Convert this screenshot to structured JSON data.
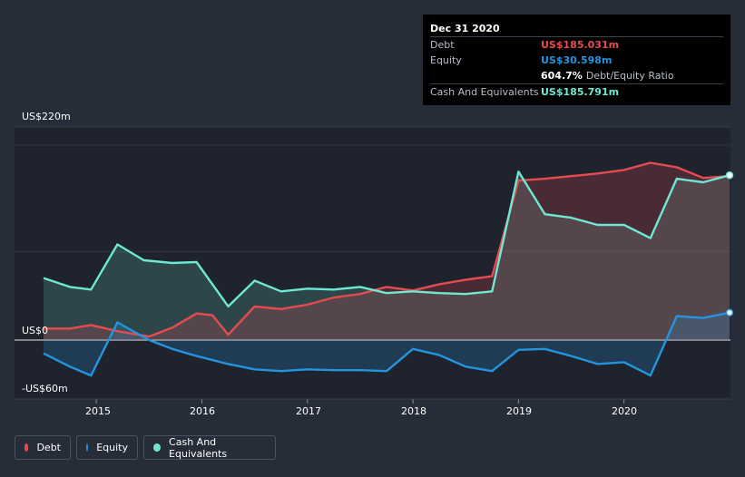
{
  "tooltip": {
    "date": "Dec 31 2020",
    "debt_label": "Debt",
    "debt_value": "US$185.031m",
    "equity_label": "Equity",
    "equity_value": "US$30.598m",
    "ratio_value": "604.7%",
    "ratio_label": "Debt/Equity Ratio",
    "cash_label": "Cash And Equivalents",
    "cash_value": "US$185.791m"
  },
  "legend": {
    "debt": "Debt",
    "equity": "Equity",
    "cash": "Cash And Equivalents"
  },
  "colors": {
    "debt": "#e64b50",
    "equity": "#2394df",
    "cash": "#6ee7d3"
  },
  "chart_data": {
    "type": "area",
    "ylabels": [
      "US$220m",
      "US$0",
      "-US$60m"
    ],
    "xlabels": [
      "2015",
      "2016",
      "2017",
      "2018",
      "2019",
      "2020"
    ],
    "xlim": [
      2014.5,
      2021.0
    ],
    "ylim": [
      -60,
      220
    ],
    "series": [
      {
        "name": "Debt",
        "x": [
          2014.5,
          2014.75,
          2014.95,
          2015.2,
          2015.5,
          2015.72,
          2015.95,
          2016.1,
          2016.25,
          2016.5,
          2016.75,
          2017.0,
          2017.25,
          2017.5,
          2017.75,
          2018.0,
          2018.25,
          2018.5,
          2018.75,
          2019.0,
          2019.25,
          2019.5,
          2019.75,
          2020.0,
          2020.25,
          2020.5,
          2020.75,
          2021.0
        ],
        "values": [
          13,
          13,
          17,
          10,
          4,
          14,
          30,
          28,
          6,
          38,
          35,
          40,
          48,
          52,
          60,
          56,
          63,
          68,
          72,
          180,
          182,
          185,
          188,
          192,
          200,
          195,
          183,
          185
        ]
      },
      {
        "name": "Equity",
        "x": [
          2014.5,
          2014.75,
          2014.95,
          2015.2,
          2015.5,
          2015.72,
          2015.95,
          2016.25,
          2016.5,
          2016.75,
          2017.0,
          2017.25,
          2017.5,
          2017.75,
          2018.0,
          2018.25,
          2018.5,
          2018.75,
          2019.0,
          2019.25,
          2019.5,
          2019.75,
          2020.0,
          2020.25,
          2020.5,
          2020.75,
          2021.0
        ],
        "values": [
          -15,
          -30,
          -40,
          20,
          0,
          -10,
          -18,
          -27,
          -33,
          -35,
          -33,
          -34,
          -34,
          -35,
          -10,
          -17,
          -30,
          -35,
          -11,
          -10,
          -18,
          -27,
          -25,
          -40,
          27,
          25,
          31
        ]
      },
      {
        "name": "Cash And Equivalents",
        "x": [
          2014.5,
          2014.75,
          2014.95,
          2015.2,
          2015.45,
          2015.72,
          2015.95,
          2016.25,
          2016.5,
          2016.75,
          2017.0,
          2017.25,
          2017.5,
          2017.75,
          2018.0,
          2018.25,
          2018.5,
          2018.75,
          2019.0,
          2019.25,
          2019.5,
          2019.75,
          2020.0,
          2020.25,
          2020.5,
          2020.75,
          2021.0
        ],
        "values": [
          70,
          60,
          57,
          108,
          90,
          87,
          88,
          38,
          67,
          55,
          58,
          57,
          60,
          53,
          55,
          53,
          52,
          55,
          190,
          142,
          138,
          130,
          130,
          115,
          182,
          178,
          186
        ]
      }
    ]
  }
}
